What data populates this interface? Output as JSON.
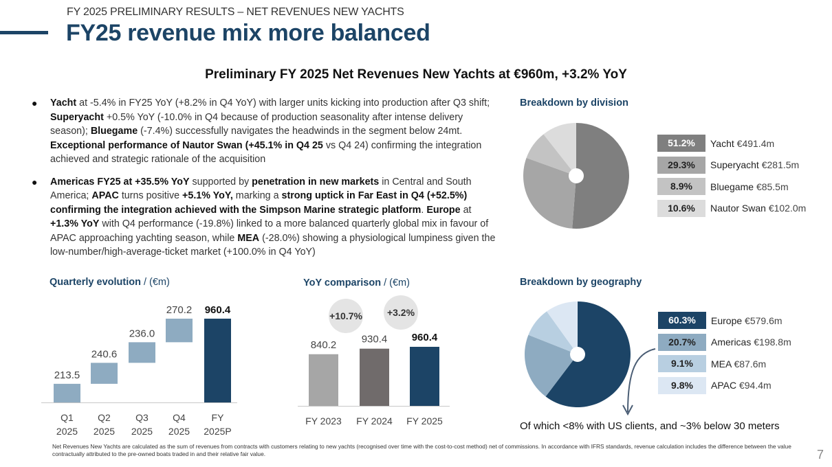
{
  "header": {
    "supertitle": "FY 2025 PRELIMINARY RESULTS – NET REVENUES NEW YACHTS",
    "title": "FY25 revenue mix more balanced",
    "headline": "Preliminary FY 2025 Net Revenues New Yachts at €960m, +3.2% YoY"
  },
  "bullets": [
    {
      "segments": [
        {
          "t": "Yacht",
          "b": true
        },
        {
          "t": " at -5.4% in FY25 YoY (+8.2% in Q4 YoY) with larger units kicking into production after Q3 shift; ",
          "b": false
        },
        {
          "t": "Superyacht",
          "b": true
        },
        {
          "t": " +0.5% YoY (-10.0% in Q4 because of production seasonality after intense delivery season); ",
          "b": false
        },
        {
          "t": "Bluegame",
          "b": true
        },
        {
          "t": " (-7.4%) successfully navigates the headwinds in the segment below 24mt. ",
          "b": false
        },
        {
          "t": "Exceptional performance of Nautor Swan (+45.1% in Q4 25",
          "b": true
        },
        {
          "t": " vs Q4 24) confirming the integration achieved and strategic rationale of the acquisition",
          "b": false
        }
      ]
    },
    {
      "segments": [
        {
          "t": "Americas FY25 at +35.5% YoY",
          "b": true
        },
        {
          "t": " supported by ",
          "b": false
        },
        {
          "t": "penetration in new markets",
          "b": true
        },
        {
          "t": " in Central and South America; ",
          "b": false
        },
        {
          "t": "APAC",
          "b": true
        },
        {
          "t": " turns positive ",
          "b": false
        },
        {
          "t": "+5.1% YoY,",
          "b": true
        },
        {
          "t": " marking a ",
          "b": false
        },
        {
          "t": "strong uptick in Far East in Q4 (+52.5%) confirming the integration achieved with the Simpson Marine strategic platform",
          "b": true
        },
        {
          "t": ". ",
          "b": false
        },
        {
          "t": "Europe",
          "b": true
        },
        {
          "t": " at ",
          "b": false
        },
        {
          "t": "+1.3% YoY",
          "b": true
        },
        {
          "t": " with Q4 performance (-19.8%) linked to a more balanced quarterly global mix in favour of APAC approaching yachting season, while ",
          "b": false
        },
        {
          "t": "MEA",
          "b": true
        },
        {
          "t": " (-28.0%) showing a physiological lumpiness given the low-number/high-average-ticket market (+100.0% in Q4 YoY)",
          "b": false
        }
      ]
    }
  ],
  "chart_data": [
    {
      "id": "quarterly",
      "type": "bar",
      "subtype": "waterfall",
      "title": "Quarterly evolution",
      "unit": "/ (€m)",
      "categories": [
        [
          "Q1",
          "2025"
        ],
        [
          "Q2",
          "2025"
        ],
        [
          "Q3",
          "2025"
        ],
        [
          "Q4",
          "2025"
        ],
        [
          "FY",
          "2025P"
        ]
      ],
      "values": [
        213.5,
        240.6,
        236.0,
        270.2,
        960.4
      ],
      "labels": [
        "213.5",
        "240.6",
        "236.0",
        "270.2",
        "960.4"
      ],
      "total_index": 4,
      "colors": {
        "step": "#8eabc1",
        "total": "#1c4466"
      },
      "ylim": [
        0,
        960.4
      ]
    },
    {
      "id": "yoy",
      "type": "bar",
      "title": "YoY comparison",
      "unit": "/ (€m)",
      "categories": [
        "FY 2023",
        "FY 2024",
        "FY 2025"
      ],
      "values": [
        840.2,
        930.4,
        960.4
      ],
      "labels": [
        "840.2",
        "930.4",
        "960.4"
      ],
      "colors": [
        "#a6a6a6",
        "#706b6b",
        "#1c4466"
      ],
      "growth": [
        "+10.7%",
        "+3.2%"
      ],
      "ylim": [
        0,
        1100
      ]
    },
    {
      "id": "division",
      "type": "pie",
      "title": "Breakdown by division",
      "slices": [
        {
          "name": "Yacht",
          "pct": 51.2,
          "pct_label": "51.2%",
          "value_label": "€491.4m",
          "color": "#7f7f7f",
          "text": "#ffffff"
        },
        {
          "name": "Superyacht",
          "pct": 29.3,
          "pct_label": "29.3%",
          "value_label": "€281.5m",
          "color": "#a6a6a6",
          "text": "#222222"
        },
        {
          "name": "Bluegame",
          "pct": 8.9,
          "pct_label": "8.9%",
          "value_label": "€85.5m",
          "color": "#c3c3c3",
          "text": "#222222"
        },
        {
          "name": "Nautor Swan",
          "pct": 10.6,
          "pct_label": "10.6%",
          "value_label": "€102.0m",
          "color": "#dcdcdc",
          "text": "#222222"
        }
      ]
    },
    {
      "id": "geography",
      "type": "pie",
      "title": "Breakdown by geography",
      "slices": [
        {
          "name": "Europe",
          "pct": 60.3,
          "pct_label": "60.3%",
          "value_label": "€579.6m",
          "color": "#1c4466",
          "text": "#ffffff"
        },
        {
          "name": "Americas",
          "pct": 20.7,
          "pct_label": "20.7%",
          "value_label": "€198.8m",
          "color": "#8eabc1",
          "text": "#222222"
        },
        {
          "name": "MEA",
          "pct": 9.1,
          "pct_label": "9.1%",
          "value_label": "€87.6m",
          "color": "#b8cfe1",
          "text": "#222222"
        },
        {
          "name": "APAC",
          "pct": 9.8,
          "pct_label": "9.8%",
          "value_label": "€94.4m",
          "color": "#dce7f3",
          "text": "#222222"
        }
      ],
      "note": "Of which <8% with US clients, and ~3% below 30 meters"
    }
  ],
  "footnote": "Net Revenues New Yachts are calculated as the sum of revenues from contracts with customers relating to new yachts (recognised over time with the cost-to-cost method) net of commissions. In accordance with IFRS standards, revenue calculation includes the difference between the value contractually attributed to the pre-owned boats traded in and their relative fair value.",
  "page_number": "7",
  "colors": {
    "brand": "#1c4466"
  }
}
